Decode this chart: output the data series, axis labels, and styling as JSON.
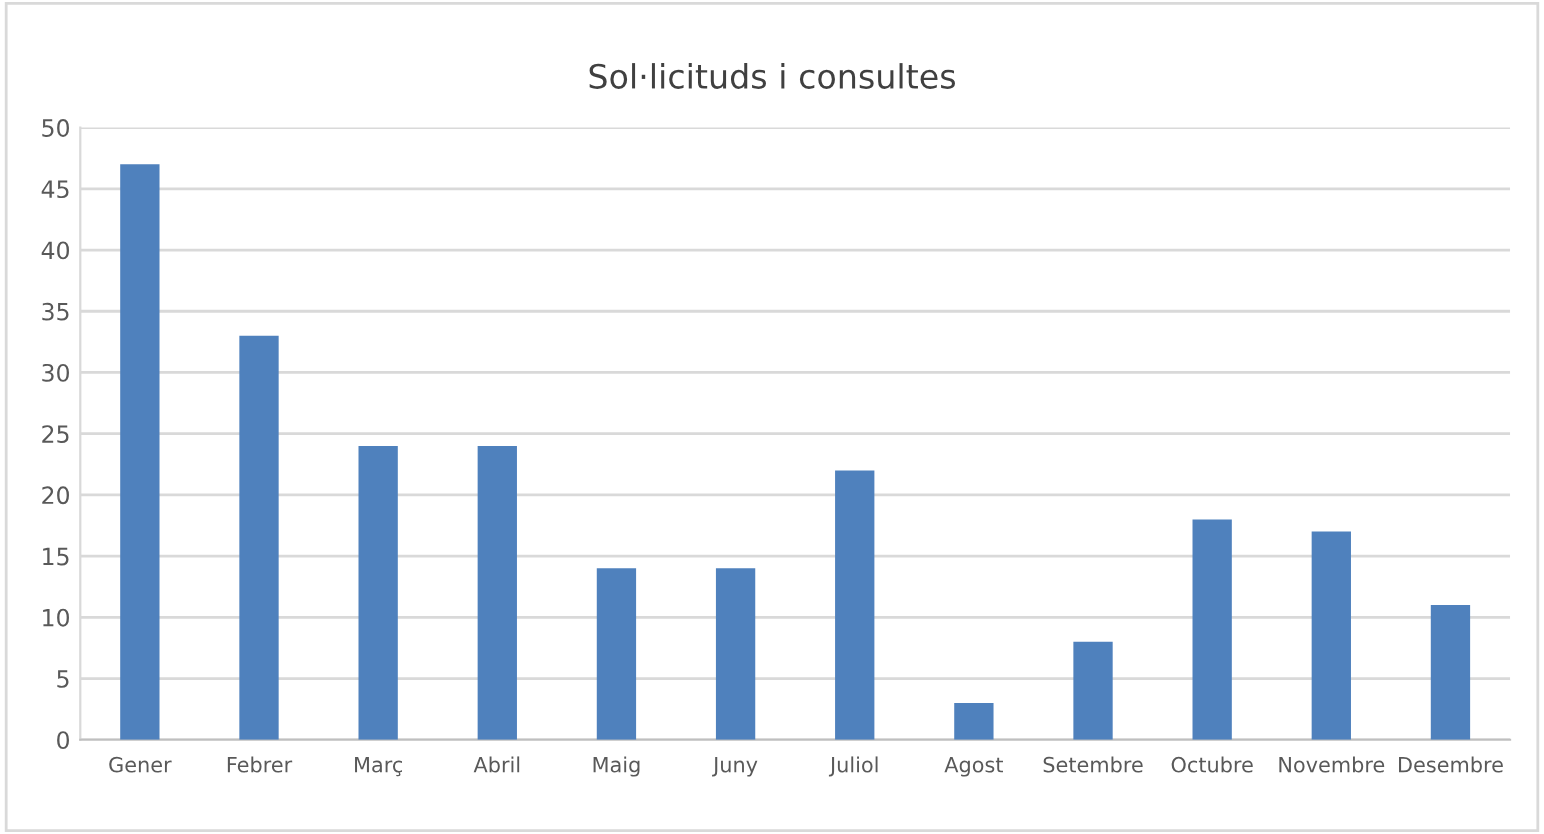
{
  "chart_data": {
    "type": "bar",
    "title": "Sol·licituds i consultes",
    "categories": [
      "Gener",
      "Febrer",
      "Març",
      "Abril",
      "Maig",
      "Juny",
      "Juliol",
      "Agost",
      "Setembre",
      "Octubre",
      "Novembre",
      "Desembre"
    ],
    "values": [
      47,
      33,
      24,
      24,
      14,
      14,
      22,
      3,
      8,
      18,
      17,
      11
    ],
    "color": "#4f81bd",
    "ylim": [
      0,
      50
    ],
    "yticks": [
      0,
      5,
      10,
      15,
      20,
      25,
      30,
      35,
      40,
      45,
      50
    ],
    "grid": "y",
    "legend": false
  }
}
